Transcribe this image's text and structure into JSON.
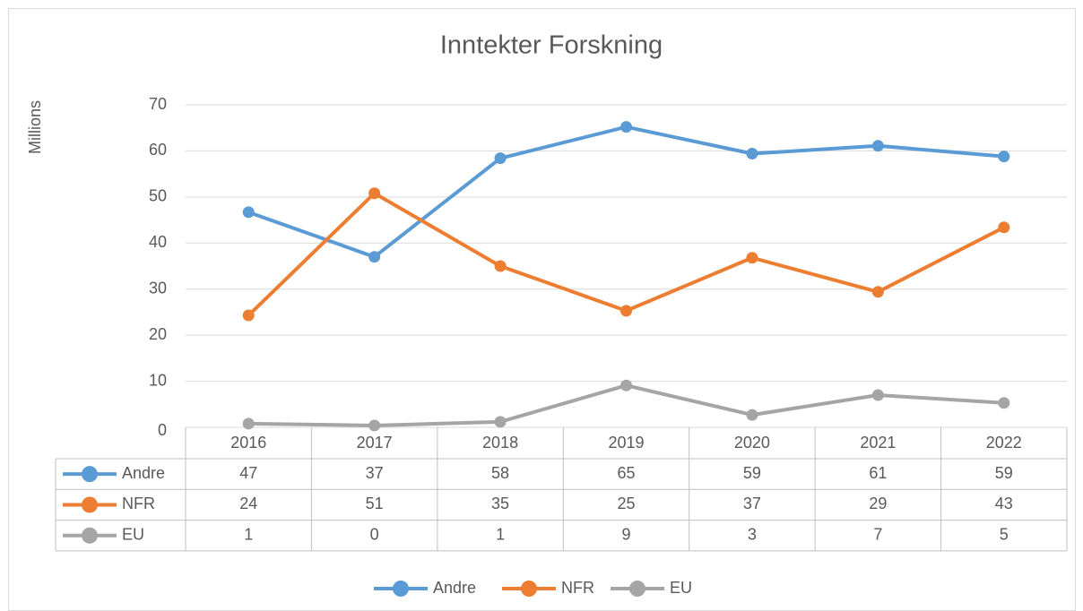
{
  "chart_data": {
    "type": "line",
    "title": "Inntekter  Forskning",
    "y_label": "Millions",
    "categories": [
      "2016",
      "2017",
      "2018",
      "2019",
      "2020",
      "2021",
      "2022"
    ],
    "series": [
      {
        "name": "Andre",
        "color": "#5b9bd5",
        "values": [
          46.7,
          37.0,
          58.4,
          65.2,
          59.4,
          61.1,
          58.8
        ],
        "value_labels": [
          "47",
          "37",
          "58",
          "65",
          "59",
          "61",
          "59"
        ]
      },
      {
        "name": "NFR",
        "color": "#ed7d31",
        "values": [
          24.3,
          50.8,
          35.0,
          25.3,
          36.8,
          29.4,
          43.4
        ],
        "value_labels": [
          "24",
          "51",
          "35",
          "25",
          "37",
          "29",
          "43"
        ]
      },
      {
        "name": "EU",
        "color": "#a5a5a5",
        "values": [
          0.8,
          0.4,
          1.2,
          9.1,
          2.7,
          7.0,
          5.3
        ],
        "value_labels": [
          "1",
          "0",
          "1",
          "9",
          "3",
          "7",
          "5"
        ]
      }
    ],
    "ylim": [
      0,
      70
    ],
    "yticks": [
      0,
      10,
      20,
      30,
      40,
      50,
      60,
      70
    ],
    "grid": true,
    "legend": "bottom",
    "data_table": true
  }
}
